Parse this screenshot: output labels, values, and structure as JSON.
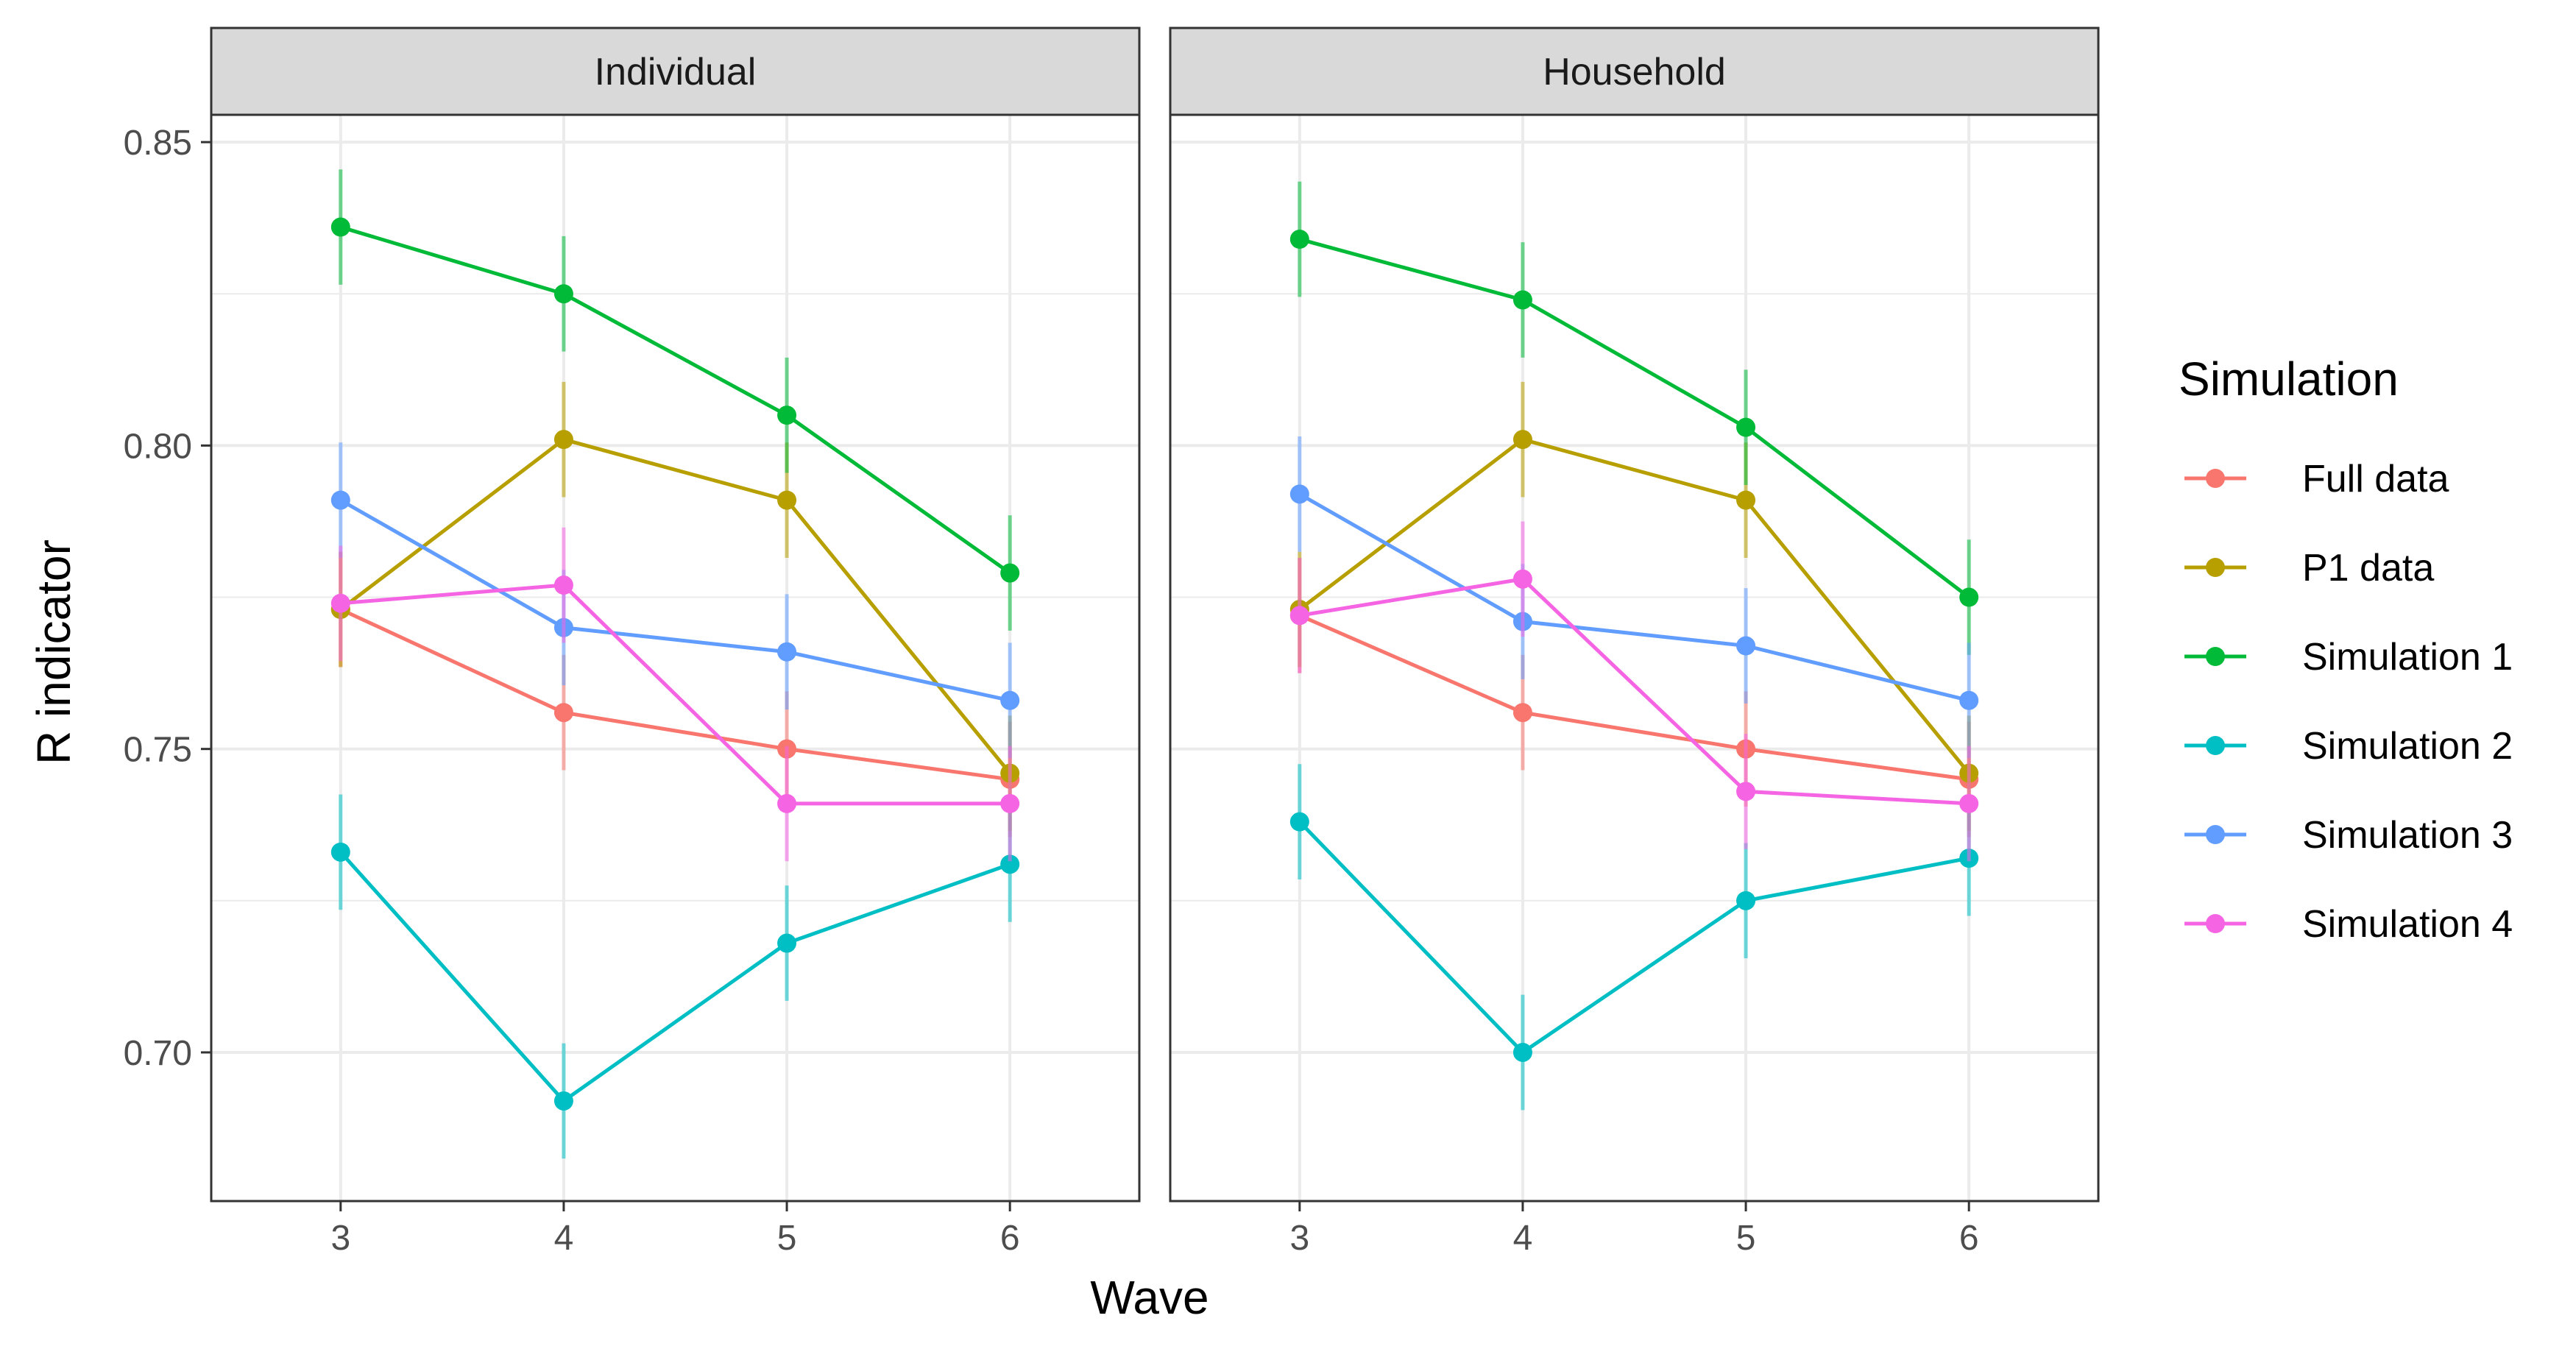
{
  "chart_data": {
    "type": "line",
    "xlabel": "Wave",
    "ylabel": "R indicator",
    "x": [
      3,
      4,
      5,
      6
    ],
    "xlim": [
      2.42,
      6.58
    ],
    "ylim": [
      0.6755,
      0.8545
    ],
    "y_ticks": [
      "0.70",
      "0.75",
      "0.80",
      "0.85"
    ],
    "y_tick_values": [
      0.7,
      0.75,
      0.8,
      0.85
    ],
    "x_ticks": [
      "3",
      "4",
      "5",
      "6"
    ],
    "grid": true,
    "legend_title": "Simulation",
    "legend_position": "right",
    "error_half_width": 0.0095,
    "series_meta": [
      {
        "name": "Full data",
        "color": "#F8766D"
      },
      {
        "name": "P1 data",
        "color": "#B79F00"
      },
      {
        "name": "Simulation 1",
        "color": "#00BA38"
      },
      {
        "name": "Simulation 2",
        "color": "#00BFC4"
      },
      {
        "name": "Simulation 3",
        "color": "#619CFF"
      },
      {
        "name": "Simulation 4",
        "color": "#F564E3"
      }
    ],
    "panels": [
      {
        "title": "Individual",
        "series": [
          {
            "name": "Full data",
            "values": [
              0.773,
              0.756,
              0.75,
              0.745
            ]
          },
          {
            "name": "P1 data",
            "values": [
              0.773,
              0.801,
              0.791,
              0.746
            ]
          },
          {
            "name": "Simulation 1",
            "values": [
              0.836,
              0.825,
              0.805,
              0.779
            ]
          },
          {
            "name": "Simulation 2",
            "values": [
              0.733,
              0.692,
              0.718,
              0.731
            ]
          },
          {
            "name": "Simulation 3",
            "values": [
              0.791,
              0.77,
              0.766,
              0.758
            ]
          },
          {
            "name": "Simulation 4",
            "values": [
              0.774,
              0.777,
              0.741,
              0.741
            ]
          }
        ]
      },
      {
        "title": "Household",
        "series": [
          {
            "name": "Full data",
            "values": [
              0.772,
              0.756,
              0.75,
              0.745
            ]
          },
          {
            "name": "P1 data",
            "values": [
              0.773,
              0.801,
              0.791,
              0.746
            ]
          },
          {
            "name": "Simulation 1",
            "values": [
              0.834,
              0.824,
              0.803,
              0.775
            ]
          },
          {
            "name": "Simulation 2",
            "values": [
              0.738,
              0.7,
              0.725,
              0.732
            ]
          },
          {
            "name": "Simulation 3",
            "values": [
              0.792,
              0.771,
              0.767,
              0.758
            ]
          },
          {
            "name": "Simulation 4",
            "values": [
              0.772,
              0.778,
              0.743,
              0.741
            ]
          }
        ]
      }
    ]
  }
}
